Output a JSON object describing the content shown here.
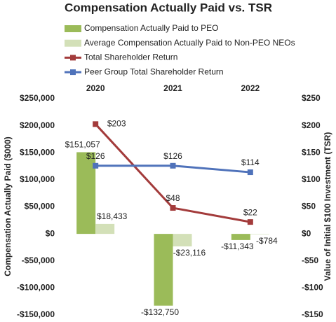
{
  "chart_data": {
    "type": "bar",
    "title": "Compensation Actually Paid vs. TSR",
    "ylabel": "Compensation Actually Paid ($000)",
    "y2label": "Value of Initial $100 Investment (TSR)",
    "categories": [
      "2020",
      "2021",
      "2022"
    ],
    "series": [
      {
        "name": "Compensation Actually Paid to PEO",
        "type": "bar",
        "color": "#9bbb59",
        "label_color": "#5f7530",
        "values": [
          151057,
          -132750,
          -11343
        ],
        "value_labels": [
          "$151,057",
          "-$132,750",
          "-$11,343"
        ]
      },
      {
        "name": "Average Compensation Actually Paid to Non-PEO NEOs",
        "type": "bar",
        "color": "#d3e0b8",
        "label_color": "#5f7530",
        "values": [
          18433,
          -23116,
          -784
        ],
        "value_labels": [
          "$18,433",
          "-$23,116",
          "-$784"
        ]
      },
      {
        "name": "Total Shareholder Return",
        "type": "line",
        "axis": "y2",
        "color": "#a33b3b",
        "label_color": "#a33b3b",
        "values": [
          203,
          48,
          22
        ],
        "value_labels": [
          "$203",
          "$48",
          "$22"
        ]
      },
      {
        "name": "Peer Group Total Shareholder Return",
        "type": "line",
        "axis": "y2",
        "color": "#4f72ba",
        "label_color": "#4f72ba",
        "values": [
          126,
          126,
          114
        ],
        "value_labels": [
          "$126",
          "$126",
          "$114"
        ]
      }
    ],
    "ylim": [
      -150000,
      250000
    ],
    "yticks": [
      {
        "value": 250000,
        "label": "$250,000"
      },
      {
        "value": 200000,
        "label": "$200,000"
      },
      {
        "value": 150000,
        "label": "$150,000"
      },
      {
        "value": 100000,
        "label": "$100,000"
      },
      {
        "value": 50000,
        "label": "$50,000"
      },
      {
        "value": 0,
        "label": "$0"
      },
      {
        "value": -50000,
        "label": "-$50,000"
      },
      {
        "value": -100000,
        "label": "-$100,000"
      },
      {
        "value": -150000,
        "label": "-$150,000"
      }
    ],
    "y2lim": [
      -150,
      250
    ],
    "y2ticks": [
      {
        "value": 250,
        "label": "$250"
      },
      {
        "value": 200,
        "label": "$200"
      },
      {
        "value": 150,
        "label": "$150"
      },
      {
        "value": 100,
        "label": "$100"
      },
      {
        "value": 50,
        "label": "$50"
      },
      {
        "value": 0,
        "label": "$0"
      },
      {
        "value": -50,
        "label": "-$50"
      },
      {
        "value": -100,
        "label": "-$100"
      },
      {
        "value": -150,
        "label": "-$150"
      }
    ],
    "grid": false
  }
}
